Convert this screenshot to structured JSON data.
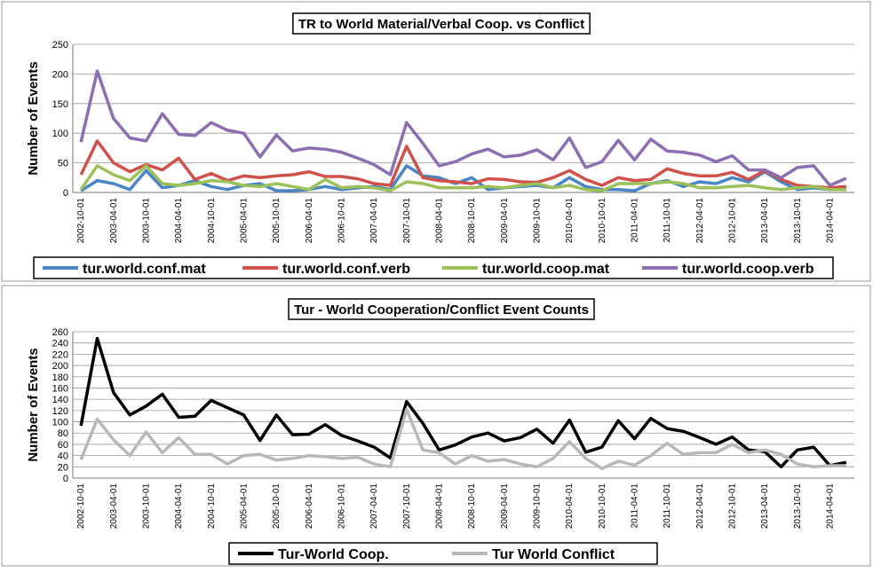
{
  "chart_data": [
    {
      "type": "line",
      "title": "TR to World Material/Verbal Coop. vs Conflict",
      "ylabel": "Number of Events",
      "categories": [
        "2002-10-01",
        null,
        "2003-04-01",
        null,
        "2003-10-01",
        null,
        "2004-04-01",
        null,
        "2004-10-01",
        null,
        "2005-04-01",
        null,
        "2005-10-01",
        null,
        "2006-04-01",
        null,
        "2006-10-01",
        null,
        "2007-04-01",
        null,
        "2007-10-01",
        null,
        "2008-04-01",
        null,
        "2008-10-01",
        null,
        "2009-04-01",
        null,
        "2009-10-01",
        null,
        "2010-04-01",
        null,
        "2010-10-01",
        null,
        "2011-04-01",
        null,
        "2011-10-01",
        null,
        "2012-04-01",
        null,
        "2012-10-01",
        null,
        "2013-04-01",
        null,
        "2013-10-01",
        null,
        "2014-04-01",
        null
      ],
      "ylim": [
        0,
        250
      ],
      "yticks": [
        0,
        50,
        100,
        150,
        200,
        250
      ],
      "grid": true,
      "legend": "bottom",
      "series": [
        {
          "name": "tur.world.conf.mat",
          "color": "#4a86c5",
          "values": [
            3,
            20,
            15,
            5,
            37,
            8,
            12,
            20,
            10,
            5,
            12,
            15,
            3,
            3,
            5,
            10,
            5,
            8,
            10,
            5,
            45,
            28,
            25,
            15,
            25,
            5,
            8,
            10,
            12,
            8,
            25,
            10,
            5,
            5,
            3,
            15,
            20,
            10,
            18,
            15,
            25,
            18,
            35,
            18,
            5,
            8,
            5,
            5
          ]
        },
        {
          "name": "tur.world.conf.verb",
          "color": "#d0504a",
          "values": [
            30,
            87,
            50,
            35,
            47,
            38,
            58,
            22,
            32,
            20,
            28,
            25,
            28,
            30,
            35,
            27,
            27,
            23,
            15,
            12,
            78,
            25,
            20,
            18,
            15,
            23,
            22,
            18,
            17,
            25,
            37,
            22,
            12,
            25,
            20,
            22,
            40,
            32,
            28,
            28,
            34,
            22,
            37,
            22,
            12,
            10,
            8,
            10
          ]
        },
        {
          "name": "tur.world.coop.mat",
          "color": "#9bc158",
          "values": [
            5,
            45,
            30,
            20,
            45,
            15,
            12,
            15,
            20,
            18,
            12,
            10,
            15,
            10,
            5,
            22,
            8,
            10,
            8,
            3,
            18,
            15,
            8,
            8,
            8,
            10,
            8,
            12,
            15,
            8,
            12,
            5,
            3,
            15,
            15,
            15,
            18,
            15,
            8,
            8,
            10,
            12,
            8,
            5,
            8,
            10,
            5,
            5
          ]
        },
        {
          "name": "tur.world.coop.verb",
          "color": "#8c6fb0",
          "values": [
            85,
            205,
            125,
            92,
            87,
            133,
            98,
            96,
            118,
            105,
            100,
            60,
            97,
            70,
            75,
            73,
            68,
            58,
            47,
            30,
            118,
            83,
            45,
            52,
            65,
            73,
            60,
            63,
            72,
            55,
            92,
            42,
            52,
            88,
            55,
            90,
            70,
            68,
            63,
            52,
            62,
            38,
            38,
            25,
            42,
            45,
            12,
            24
          ]
        }
      ]
    },
    {
      "type": "line",
      "title": "Tur - World Cooperation/Conflict Event Counts",
      "ylabel": "Number of Events",
      "categories": [
        "2002-10-01",
        null,
        "2003-04-01",
        null,
        "2003-10-01",
        null,
        "2004-04-01",
        null,
        "2004-10-01",
        null,
        "2005-04-01",
        null,
        "2005-10-01",
        null,
        "2006-04-01",
        null,
        "2006-10-01",
        null,
        "2007-04-01",
        null,
        "2007-10-01",
        null,
        "2008-04-01",
        null,
        "2008-10-01",
        null,
        "2009-04-01",
        null,
        "2009-10-01",
        null,
        "2010-04-01",
        null,
        "2010-10-01",
        null,
        "2011-04-01",
        null,
        "2011-10-01",
        null,
        "2012-04-01",
        null,
        "2012-10-01",
        null,
        "2013-04-01",
        null,
        "2013-10-01",
        null,
        "2014-04-01",
        null
      ],
      "ylim": [
        0,
        260
      ],
      "yticks": [
        0,
        20,
        40,
        60,
        80,
        100,
        120,
        140,
        160,
        180,
        200,
        220,
        240,
        260
      ],
      "grid": true,
      "legend": "bottom",
      "series": [
        {
          "name": "Tur-World Coop.",
          "color": "#000000",
          "values": [
            93,
            248,
            152,
            112,
            128,
            149,
            108,
            110,
            138,
            125,
            112,
            67,
            112,
            77,
            78,
            95,
            76,
            66,
            55,
            36,
            136,
            97,
            50,
            59,
            73,
            80,
            66,
            72,
            87,
            62,
            103,
            46,
            55,
            102,
            70,
            106,
            88,
            83,
            72,
            60,
            73,
            50,
            47,
            20,
            50,
            55,
            22,
            28
          ]
        },
        {
          "name": "Tur World Conflict",
          "color": "#b8b8b8",
          "values": [
            33,
            105,
            68,
            40,
            82,
            45,
            72,
            42,
            42,
            25,
            40,
            42,
            32,
            35,
            40,
            38,
            35,
            37,
            25,
            20,
            122,
            50,
            45,
            25,
            40,
            30,
            33,
            25,
            20,
            35,
            65,
            35,
            17,
            30,
            23,
            40,
            62,
            42,
            45,
            45,
            60,
            45,
            50,
            42,
            25,
            20,
            22,
            22
          ]
        }
      ]
    }
  ]
}
